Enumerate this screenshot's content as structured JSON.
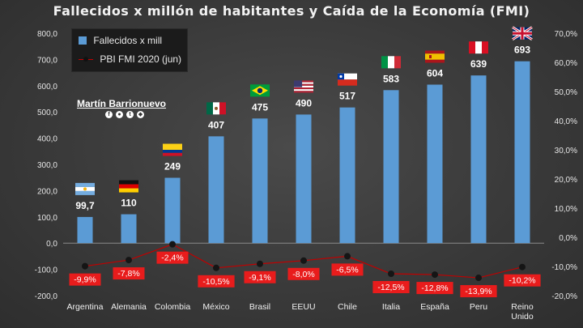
{
  "chart_data": {
    "type": "bar",
    "title": "Fallecidos x millón de habitantes y Caída de la Economía (FMI)",
    "categories": [
      "Argentina",
      "Alemania",
      "Colombia",
      "México",
      "Brasil",
      "EEUU",
      "Chile",
      "Italia",
      "España",
      "Peru",
      "Reino Unido"
    ],
    "series": [
      {
        "name": "Fallecidos x mill",
        "type": "bar",
        "axis": "left",
        "color": "#5b9bd5",
        "values": [
          99.7,
          110,
          249,
          407,
          475,
          490,
          517,
          583,
          604,
          639,
          693
        ],
        "labels": [
          "99,7",
          "110",
          "249",
          "407",
          "475",
          "490",
          "517",
          "583",
          "604",
          "639",
          "693"
        ]
      },
      {
        "name": "PBI FMI 2020 (jun)",
        "type": "line",
        "axis": "right",
        "color": "#c00000",
        "values": [
          -9.9,
          -7.8,
          -2.4,
          -10.5,
          -9.1,
          -8.0,
          -6.5,
          -12.5,
          -12.8,
          -13.9,
          -10.2
        ],
        "labels": [
          "-9,9%",
          "-7,8%",
          "-2,4%",
          "-10,5%",
          "-9,1%",
          "-8,0%",
          "-6,5%",
          "-12,5%",
          "-12,8%",
          "-13,9%",
          "-10,2%"
        ]
      }
    ],
    "left_axis": {
      "min": -200,
      "max": 800,
      "step": 100,
      "ticks": [
        "-200,0",
        "-100,0",
        "0,0",
        "100,0",
        "200,0",
        "300,0",
        "400,0",
        "500,0",
        "600,0",
        "700,0",
        "800,0"
      ]
    },
    "right_axis": {
      "min": -20,
      "max": 70,
      "step": 10,
      "ticks": [
        "-20,0%",
        "-10,0%",
        "0,0%",
        "10,0%",
        "20,0%",
        "30,0%",
        "40,0%",
        "50,0%",
        "60,0%",
        "70,0%"
      ]
    },
    "category_labels": [
      [
        "Argentina"
      ],
      [
        "Alemania"
      ],
      [
        "Colombia"
      ],
      [
        "México"
      ],
      [
        "Brasil"
      ],
      [
        "EEUU"
      ],
      [
        "Chile"
      ],
      [
        "Italia"
      ],
      [
        "España"
      ],
      [
        "Peru"
      ],
      [
        "Reino",
        "Unido"
      ]
    ],
    "flags": [
      "argentina-flag",
      "germany-flag",
      "colombia-flag",
      "mexico-flag",
      "brazil-flag",
      "usa-flag",
      "chile-flag",
      "italy-flag",
      "spain-flag",
      "peru-flag",
      "uk-flag"
    ],
    "legend_position": "top-left",
    "grid": false
  },
  "author": {
    "name": "Martín Barrionuevo",
    "socials": [
      "f",
      "●",
      "t",
      "◆"
    ]
  }
}
